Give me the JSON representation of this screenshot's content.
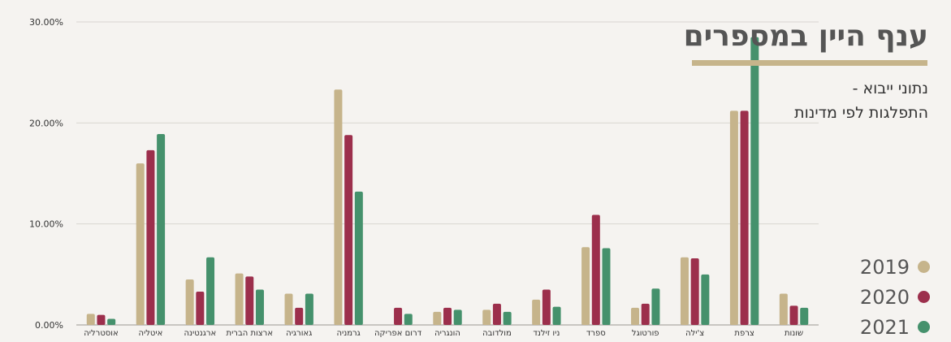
{
  "header": {
    "title": "ענף היין במספרים",
    "subtitle_line1": "נתוני ייבוא -",
    "subtitle_line2": "התפלגות לפי מדינות"
  },
  "colors": {
    "s2019": "#c6b48b",
    "s2020": "#9c2f4c",
    "s2021": "#45916c",
    "grid": "#d9d6d1",
    "axis_text": "#333333"
  },
  "chart_data": {
    "type": "bar",
    "title": "",
    "xlabel": "",
    "ylabel": "",
    "ylim": [
      0,
      30
    ],
    "yticks": [
      "0.00%",
      "10.00%",
      "20.00%",
      "30.00%"
    ],
    "grid": true,
    "legend_position": "bottom-right",
    "categories": [
      "אוסטרליה",
      "איטליה",
      "ארגנטינה",
      "ארצות הברית",
      "גאורגיה",
      "גרמניה",
      "דרום אפריקה",
      "הונגריה",
      "מולדובה",
      "ניו זילנד",
      "ספרד",
      "פורטוגל",
      "צ'ילה",
      "צרפת",
      "שונות"
    ],
    "series": [
      {
        "name": "2019",
        "values": [
          1.1,
          16.0,
          4.5,
          5.1,
          3.1,
          23.3,
          0,
          1.3,
          1.5,
          2.5,
          7.7,
          1.7,
          6.7,
          21.2,
          3.1
        ]
      },
      {
        "name": "2020",
        "values": [
          1.0,
          17.3,
          3.3,
          4.8,
          1.7,
          18.8,
          1.7,
          1.7,
          2.1,
          3.5,
          10.9,
          2.1,
          6.6,
          21.2,
          1.9
        ]
      },
      {
        "name": "2021",
        "values": [
          0.6,
          18.9,
          6.7,
          3.5,
          3.1,
          13.2,
          1.1,
          1.5,
          1.3,
          1.8,
          7.6,
          3.6,
          5.0,
          28.5,
          1.7
        ]
      }
    ]
  }
}
